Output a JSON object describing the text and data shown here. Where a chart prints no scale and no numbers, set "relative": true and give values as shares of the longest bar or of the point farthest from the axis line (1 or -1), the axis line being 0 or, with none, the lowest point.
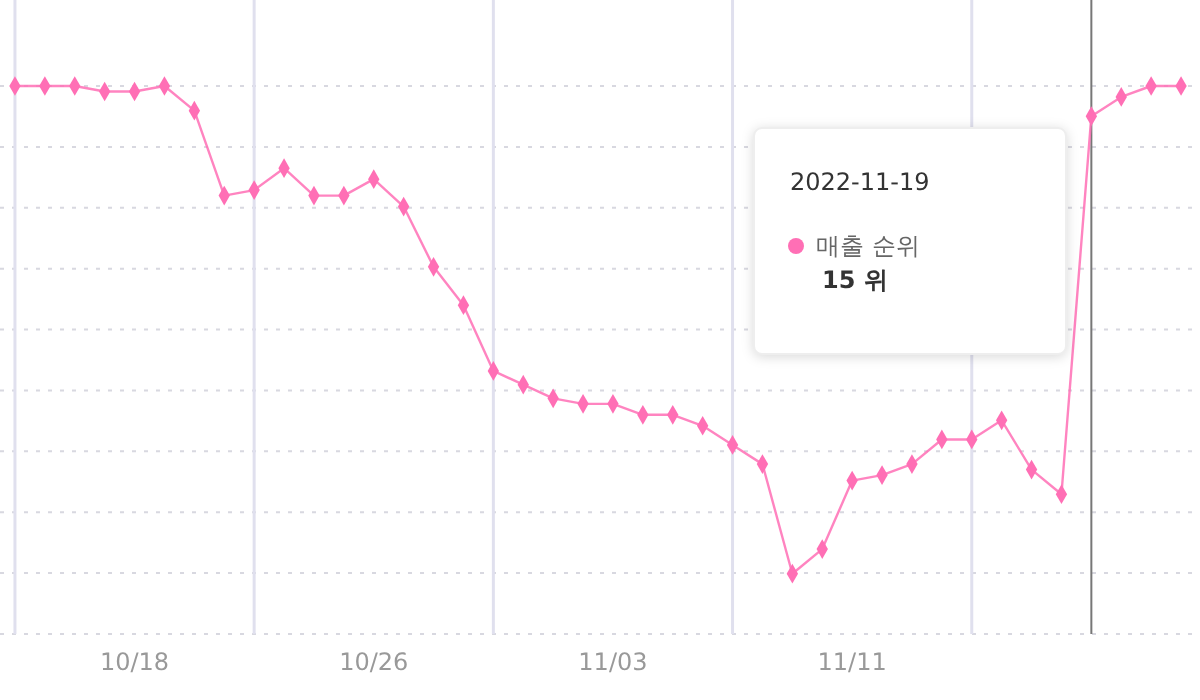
{
  "chart_data": {
    "type": "line",
    "relative": true,
    "x": [
      "2022-10-14",
      "2022-10-15",
      "2022-10-16",
      "2022-10-17",
      "2022-10-18",
      "2022-10-19",
      "2022-10-20",
      "2022-10-21",
      "2022-10-22",
      "2022-10-23",
      "2022-10-24",
      "2022-10-25",
      "2022-10-26",
      "2022-10-27",
      "2022-10-28",
      "2022-10-29",
      "2022-10-30",
      "2022-10-31",
      "2022-11-01",
      "2022-11-02",
      "2022-11-03",
      "2022-11-04",
      "2022-11-05",
      "2022-11-06",
      "2022-11-07",
      "2022-11-08",
      "2022-11-09",
      "2022-11-10",
      "2022-11-11",
      "2022-11-12",
      "2022-11-13",
      "2022-11-14",
      "2022-11-15",
      "2022-11-16",
      "2022-11-17",
      "2022-11-18",
      "2022-11-19",
      "2022-11-20",
      "2022-11-21",
      "2022-11-22"
    ],
    "series": [
      {
        "name": "매출 순위",
        "color": "#ff6fb5",
        "values": [
          1,
          1,
          1,
          0.99,
          0.99,
          1,
          0.955,
          0.8,
          0.81,
          0.85,
          0.8,
          0.8,
          0.83,
          0.78,
          0.67,
          0.6,
          0.48,
          0.455,
          0.43,
          0.42,
          0.42,
          0.4,
          0.4,
          0.38,
          0.345,
          0.31,
          0.11,
          0.155,
          0.28,
          0.29,
          0.31,
          0.355,
          0.355,
          0.39,
          0.3,
          0.255,
          0.945,
          0.98,
          1,
          1
        ]
      }
    ],
    "xlim": [
      "2022-10-13T12:00",
      "2022-11-22T12:00"
    ],
    "xticks": [
      {
        "value": "2022-10-14",
        "label": null
      },
      {
        "value": "2022-10-18",
        "label": "10/18"
      },
      {
        "value": "2022-10-22",
        "label": null
      },
      {
        "value": "2022-10-26",
        "label": "10/26"
      },
      {
        "value": "2022-10-30",
        "label": null
      },
      {
        "value": "2022-11-03",
        "label": "11/03"
      },
      {
        "value": "2022-11-07",
        "label": null
      },
      {
        "value": "2022-11-11",
        "label": "11/11"
      },
      {
        "value": "2022-11-15",
        "label": null
      }
    ],
    "ref_lines": [
      {
        "axis": "x",
        "value": "2022-11-19",
        "color": "#777777"
      }
    ],
    "annotations": [
      "2022-11-19",
      "15 위"
    ],
    "grid": true,
    "marker": "diamond",
    "line_style": "solid"
  }
}
